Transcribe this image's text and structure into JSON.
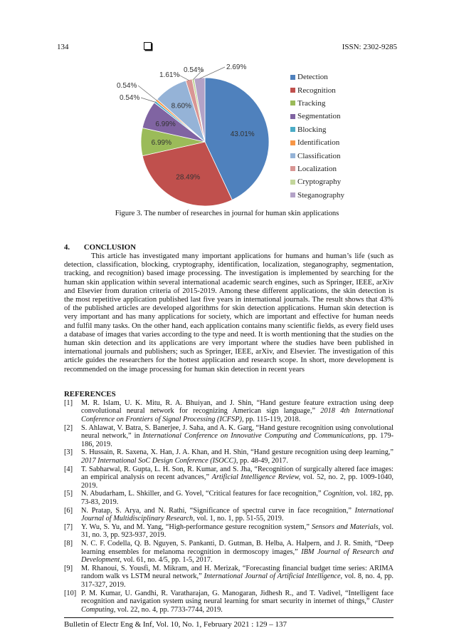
{
  "header": {
    "page_number": "134",
    "icon": "checkbox-square-icon",
    "issn": "ISSN: 2302-9285"
  },
  "chart_data": {
    "type": "pie",
    "title": "",
    "start": "12 o'clock, clockwise",
    "legend_placement": "right",
    "categories": [
      "Detection",
      "Recognition",
      "Tracking",
      "Segmentation",
      "Blocking",
      "Identification",
      "Classification",
      "Localization",
      "Cryptography",
      "Steganography"
    ],
    "values": [
      43.01,
      28.49,
      6.99,
      6.99,
      0.54,
      0.54,
      8.6,
      1.61,
      0.54,
      2.69
    ],
    "labels": [
      "43.01%",
      "28.49%",
      "6.99%",
      "6.99%",
      "0.54%",
      "0.54%",
      "8.60%",
      "1.61%",
      "0.54%",
      "2.69%"
    ],
    "colors": [
      "#4F81BD",
      "#C0504D",
      "#9BBB59",
      "#8064A2",
      "#4BACC6",
      "#F79646",
      "#95B3D7",
      "#D99694",
      "#C3D69B",
      "#B3A2C7"
    ]
  },
  "figure": {
    "caption": "Figure 3. The number of researches in journal for human skin applications"
  },
  "conclusion": {
    "heading_num": "4.",
    "heading": "CONCLUSION",
    "text": "This article has investigated many important applications for humans and human’s life (such as detection, classification, blocking, cryptography, identification, localization, steganography, segmentation, tracking, and recognition) based image processing. The investigation is implemented by searching for the human skin application within several international academic search engines, such as Springer, IEEE, arXiv and Elsevier from duration criteria of 2015-2019. Among these different applications, the skin detection is the most repetitive application published last five years in international journals. The result shows that 43% of the published articles are developed algorithms for skin detection applications. Human skin detection is very important and has many applications for society, which are important and effective for human needs and fulfil many tasks. On the other hand, each application contains many scientific fields, as every field uses a database of images that varies according to the type and need. It is worth mentioning that the studies on the human skin detection and its applications are very important where the studies have been published in international journals and publishers; such as Springer, IEEE, arXiv, and Elsevier. The investigation of this article guides the researchers for the hottest application and research scope. In short, more development is recommended on the image processing for human skin detection in recent years"
  },
  "references": {
    "heading": "REFERENCES",
    "items": [
      {
        "num": "[1]",
        "pre": "M. R. Islam, U. K. Mitu, R. A. Bhuiyan, and J. Shin, “Hand gesture feature extraction using deep convolutional neural network for recognizing American sign language,” ",
        "venue": "2018 4th International Conference on Frontiers of Signal Processing (ICFSP)",
        "post": ", pp. 115-119, 2018."
      },
      {
        "num": "[2]",
        "pre": "S. Ahlawat, V. Batra, S. Banerjee, J. Saha, and A. K. Garg, “Hand gesture recognition using convolutional neural network,” in ",
        "venue": "International Conference on Innovative Computing and Communications",
        "post": ", pp. 179-186, 2019."
      },
      {
        "num": "[3]",
        "pre": "S. Hussain, R. Saxena, X. Han, J. A. Khan, and H. Shin, “Hand gesture recognition using deep learning,” ",
        "venue": "2017 International SoC Design Conference (ISOCC)",
        "post": ", pp. 48-49, 2017."
      },
      {
        "num": "[4]",
        "pre": "T. Sabharwal, R. Gupta, L. H. Son, R. Kumar, and S. Jha, “Recognition of surgically altered face images: an empirical analysis on recent advances,” ",
        "venue": "Artificial Intelligence Review,",
        "post": " vol. 52, no. 2, pp. 1009-1040, 2019."
      },
      {
        "num": "[5]",
        "pre": "N. Abudarham, L. Shkiller, and G. Yovel, “Critical features for face recognition,” ",
        "venue": "Cognition",
        "post": ", vol. 182, pp. 73-83, 2019."
      },
      {
        "num": "[6]",
        "pre": "N. Pratap, S. Arya, and N. Rathi, “Significance of spectral curve in face recognition,” ",
        "venue": "International Journal of Multidisciplinary Research,",
        "post": " vol. 1, no. 1, pp. 51-55, 2019."
      },
      {
        "num": "[7]",
        "pre": "Y. Wu, S. Yu, and M. Yang, “High-performance gesture recognition system,” ",
        "venue": "Sensors and Materials",
        "post": ", vol. 31, no. 3, pp. 923-937, 2019."
      },
      {
        "num": "[8]",
        "pre": "N. C. F. Codella, Q. B. Nguyen, S. Pankanti, D. Gutman, B. Helba, A. Halpern, and J. R. Smith, “Deep learning ensembles for melanoma recognition in dermoscopy images,” ",
        "venue": "IBM Journal of Research and Development",
        "post": ", vol. 61, no. 4/5, pp. 1-5, 2017."
      },
      {
        "num": "[9]",
        "pre": "M. Rhanoui, S. Yousfi, M. Mikram, and H. Merizak, “Forecasting financial budget time series: ARIMA random walk vs LSTM neural network,” ",
        "venue": "International Journal of Artificial Intelligence",
        "post": ", vol. 8, no. 4, pp. 317-327, 2019."
      },
      {
        "num": "[10]",
        "pre": "P. M. Kumar, U. Gandhi, R. Varatharajan, G. Manogaran, Jidhesh R., and T. Vadivel, “Intelligent face recognition and navigation system using neural learning for smart security in internet of things,” ",
        "venue": "Cluster Computing",
        "post": ", vol. 22, no. 4, pp. 7733-7744, 2019."
      }
    ]
  },
  "footer": {
    "text": "Bulletin of Electr Eng & Inf, Vol. 10, No. 1, February 2021 :  129 – 137"
  }
}
